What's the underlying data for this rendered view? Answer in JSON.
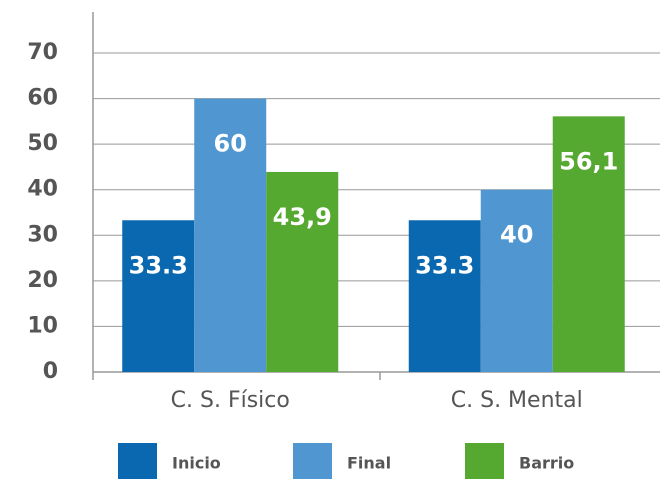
{
  "chart_data": {
    "type": "bar",
    "categories": [
      "C. S. Físico",
      "C. S. Mental"
    ],
    "series": [
      {
        "name": "Inicio",
        "color": "#0a68b0",
        "values": [
          33.3,
          33.3
        ]
      },
      {
        "name": "Final",
        "color": "#5096d0",
        "values": [
          60,
          40
        ]
      },
      {
        "name": "Barrio",
        "color": "#55a830",
        "values": [
          43.9,
          56.1
        ],
        "value_labels": [
          "43,9",
          "56,1"
        ]
      }
    ],
    "ylim": [
      0,
      79
    ],
    "yticks": [
      0,
      10,
      20,
      30,
      40,
      50,
      60,
      70
    ],
    "grid": true,
    "legend": "bottom"
  }
}
